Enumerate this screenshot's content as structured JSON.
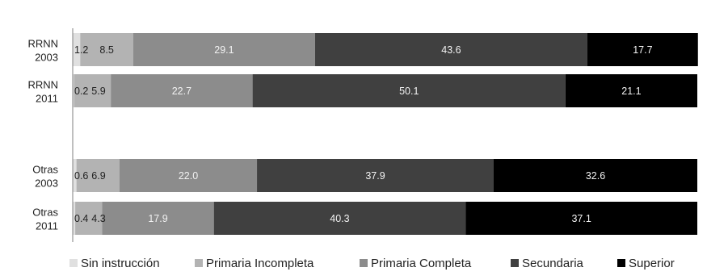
{
  "chart_data": {
    "type": "bar",
    "orientation": "horizontal",
    "stacked": true,
    "percent": true,
    "categories": [
      [
        "RRNN",
        "2003"
      ],
      [
        "RRNN",
        "2011"
      ],
      [
        "Otras",
        "2003"
      ],
      [
        "Otras",
        "2011"
      ]
    ],
    "series": [
      {
        "name": "Sin instrucción",
        "color": "#e0e0e0",
        "label_color": "#222222",
        "values": [
          1.2,
          0.2,
          0.6,
          0.4
        ]
      },
      {
        "name": "Primaria Incompleta",
        "color": "#b3b3b3",
        "label_color": "#222222",
        "values": [
          8.5,
          5.9,
          6.9,
          4.3
        ]
      },
      {
        "name": "Primaria Completa",
        "color": "#8c8c8c",
        "label_color": "#f2f2f2",
        "values": [
          29.1,
          22.7,
          22.0,
          17.9
        ]
      },
      {
        "name": "Secundaria",
        "color": "#404040",
        "label_color": "#f2f2f2",
        "values": [
          43.6,
          50.1,
          37.9,
          40.3
        ]
      },
      {
        "name": "Superior",
        "color": "#000000",
        "label_color": "#f2f2f2",
        "values": [
          17.7,
          21.1,
          32.6,
          37.1
        ]
      }
    ],
    "legend_position": "bottom",
    "grid": false,
    "title": "",
    "xlabel": "",
    "ylabel": ""
  }
}
